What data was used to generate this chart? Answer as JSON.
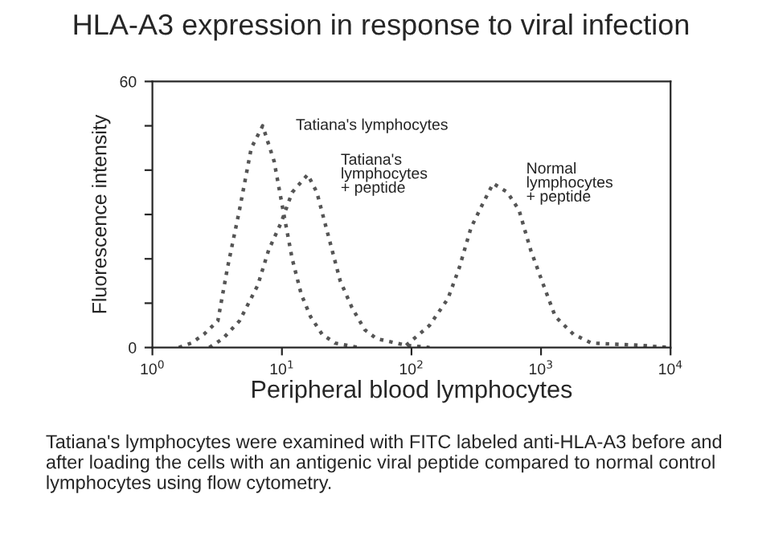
{
  "chart_data": {
    "type": "line",
    "title": "HLA-A3 expression in response to viral infection",
    "xlabel": "Peripheral blood lymphocytes",
    "ylabel": "Fluorescence intensity",
    "log": "x",
    "xlim": [
      1,
      10000
    ],
    "xticks": [
      {
        "value": 1,
        "label": "10$^{0}$"
      },
      {
        "value": 10,
        "label": "10$^{1}$"
      },
      {
        "value": 100,
        "label": "10$^{2}$"
      },
      {
        "value": 1000,
        "label": "10$^{3}$"
      },
      {
        "value": 10000,
        "label": "10$^{4}$"
      }
    ],
    "ylim": [
      0,
      60
    ],
    "yticks": [
      0,
      {
        "value": 10,
        "label": null
      },
      {
        "value": 20,
        "label": null
      },
      {
        "value": 30,
        "label": null
      },
      {
        "value": 40,
        "label": null
      },
      {
        "value": 50,
        "label": null
      },
      60
    ],
    "grid": false,
    "legend": false,
    "marker": "none",
    "line_style": "dotted",
    "series": [
      {
        "name": "Tatiana's lymphocytes",
        "color": "#555555",
        "x": [
          1.6,
          2.0,
          2.5,
          3.2,
          3.8,
          4.7,
          5.8,
          7.1,
          8.7,
          10.2,
          12,
          14.1,
          16.6,
          20.4,
          25.7,
          39
        ],
        "values": [
          0,
          1,
          3,
          6,
          18,
          31,
          45,
          50,
          42,
          31,
          20,
          12,
          7,
          3,
          1,
          0
        ]
      },
      {
        "name": "Tatiana's\nlymphocytes\n+ peptide",
        "color": "#555555",
        "x": [
          2.75,
          3.5,
          4.7,
          6.5,
          7.9,
          9.8,
          12,
          15.8,
          18.6,
          22.9,
          28.2,
          34.7,
          43.6,
          53.7,
          91,
          138
        ],
        "values": [
          0,
          2,
          6,
          14,
          22,
          28,
          35,
          39,
          35,
          25,
          15,
          9,
          4,
          2,
          0.5,
          0
        ]
      },
      {
        "name": "Normal\nlymphocytes\n+ peptide",
        "color": "#555555",
        "x": [
          91,
          138,
          191,
          234,
          288,
          363,
          427,
          550,
          676,
          832,
          1047,
          1288,
          1778,
          2455,
          5754,
          9772
        ],
        "values": [
          0.5,
          5,
          11,
          18,
          27,
          33,
          37,
          35,
          31,
          22,
          14,
          7,
          3,
          1,
          0.5,
          0
        ]
      }
    ],
    "annotations": [
      "Tatiana's lymphocytes were examined with FITC labeled anti-HLA-A3 before and after loading the cells with an antigenic viral peptide compared to normal control lymphocytes using flow cytometry."
    ]
  }
}
